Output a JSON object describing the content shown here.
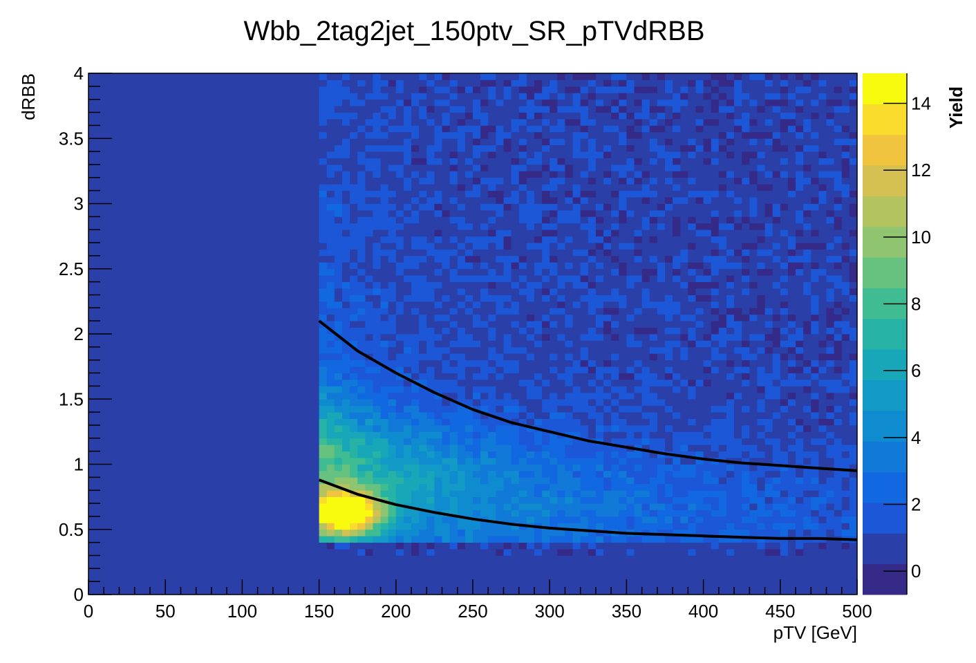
{
  "chart_data": {
    "type": "heatmap",
    "title": "Wbb_2tag2jet_150ptv_SR_pTVdRBB",
    "xlabel": "pTV [GeV]",
    "ylabel": "dRBB",
    "zlabel": "Yield",
    "xlim": [
      0,
      500
    ],
    "ylim": [
      0,
      4
    ],
    "zlim": [
      -0.7,
      14.9
    ],
    "x_ticks": [
      "0",
      "50",
      "100",
      "150",
      "200",
      "250",
      "300",
      "350",
      "400",
      "450",
      "500"
    ],
    "y_ticks": [
      "0",
      "0.5",
      "1",
      "1.5",
      "2",
      "2.5",
      "3",
      "3.5",
      "4"
    ],
    "z_ticks": [
      "0",
      "2",
      "4",
      "6",
      "8",
      "10",
      "12",
      "14"
    ],
    "bins": {
      "x_count": 100,
      "y_count": 80,
      "populated_x_range": [
        150,
        500
      ],
      "populated_y_range": [
        0.3,
        4.0
      ]
    },
    "hotspot": {
      "x": [
        150,
        185
      ],
      "y": [
        0.45,
        0.8
      ],
      "peak_yield": 14.5
    },
    "series": [
      {
        "x": [
          150,
          175,
          200,
          225,
          250,
          275,
          300,
          325,
          350,
          375,
          400,
          425,
          450,
          475,
          500
        ],
        "y": [
          2.1,
          1.87,
          1.7,
          1.55,
          1.42,
          1.32,
          1.25,
          1.18,
          1.13,
          1.08,
          1.04,
          1.01,
          0.99,
          0.97,
          0.95
        ]
      },
      {
        "x": [
          150,
          175,
          200,
          225,
          250,
          275,
          300,
          325,
          350,
          375,
          400,
          425,
          450,
          475,
          500
        ],
        "y": [
          0.88,
          0.77,
          0.69,
          0.63,
          0.58,
          0.54,
          0.51,
          0.49,
          0.47,
          0.46,
          0.45,
          0.44,
          0.43,
          0.43,
          0.42
        ]
      }
    ],
    "palette": [
      "#352a87",
      "#2a3fa8",
      "#1c57d8",
      "#1168e1",
      "#1179d8",
      "#0f8bd0",
      "#139ac7",
      "#18a7b9",
      "#26b3a6",
      "#40bc93",
      "#67c280",
      "#8fc470",
      "#b3c35f",
      "#d5c052",
      "#f0c43f",
      "#f9dc2c",
      "#f9fb0e"
    ],
    "colors": {
      "background_bin": "#2a3fa8",
      "curve": "#000000",
      "frame": "#000000"
    }
  }
}
